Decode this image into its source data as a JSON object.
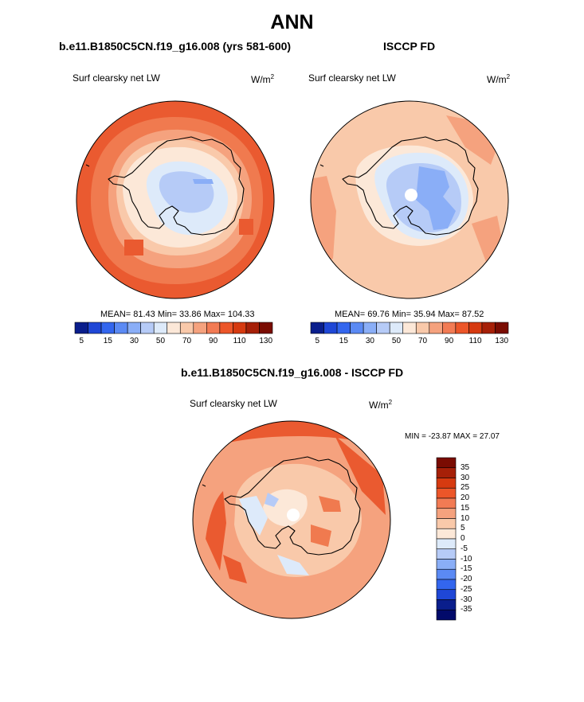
{
  "title": "ANN",
  "panels": [
    {
      "title": "b.e11.B1850C5CN.f19_g16.008 (yrs 581-600)",
      "variable": "Surf clearsky net LW",
      "units_base": "W/m",
      "units_exp": "2",
      "stats": "MEAN= 81.43 Min= 33.86 Max= 104.33",
      "has_pole_hole": false
    },
    {
      "title": "ISCCP FD",
      "variable": "Surf clearsky net LW",
      "units_base": "W/m",
      "units_exp": "2",
      "stats": "MEAN= 69.76 Min= 35.94 Max= 87.52",
      "has_pole_hole": true
    }
  ],
  "diff_panel": {
    "title": "b.e11.B1850C5CN.f19_g16.008 - ISCCP FD",
    "variable": "Surf clearsky net LW",
    "units_base": "W/m",
    "units_exp": "2",
    "stats": "MIN = -23.87 MAX = 27.07"
  },
  "colorbar_abs": {
    "colors": [
      "#0a1e8c",
      "#1f47d6",
      "#3366ee",
      "#5b8af4",
      "#8aaef7",
      "#b6cbf7",
      "#ddeafa",
      "#fce8d8",
      "#f9c9aa",
      "#f5a27e",
      "#f27b54",
      "#ec5629",
      "#d63a10",
      "#a62008",
      "#7a0c02"
    ],
    "labels": [
      "5",
      "15",
      "30",
      "50",
      "70",
      "90",
      "110",
      "130"
    ]
  },
  "colorbar_diff": {
    "colors": [
      "#7a0c02",
      "#a62008",
      "#d63a10",
      "#ec5629",
      "#f27b54",
      "#f5a27e",
      "#f9c9aa",
      "#fce8d8",
      "#ddeafa",
      "#b6cbf7",
      "#8aaef7",
      "#5b8af4",
      "#3366ee",
      "#1f47d6",
      "#0a1e8c",
      "#020a6a"
    ],
    "labels": [
      "35",
      "30",
      "25",
      "20",
      "15",
      "10",
      "5",
      "0",
      "-5",
      "-10",
      "-15",
      "-20",
      "-25",
      "-30",
      "-35"
    ]
  },
  "map_colors": {
    "ocean_deep": "#ea5a30",
    "ocean_mid": "#f07a4f",
    "ocean_light": "#f5a27e",
    "coast": "#f9c9aa",
    "ice_light": "#fce8d8",
    "ice_blue": "#ddeafa",
    "ice_mid": "#b6cbf7",
    "ice_deep": "#8aaef7"
  }
}
